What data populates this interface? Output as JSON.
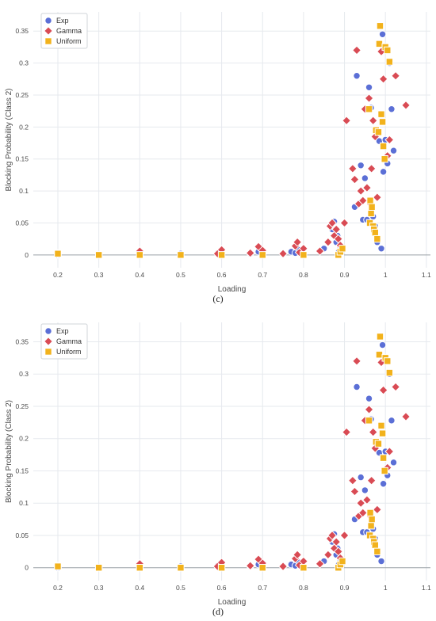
{
  "figure": {
    "caption_c": "(c)",
    "caption_d": "(d)"
  },
  "chart_data": [
    {
      "type": "scatter",
      "title": "",
      "xlabel": "Loading",
      "ylabel": "Blocking Probability (Class 2)",
      "xlim": [
        0.14,
        1.11
      ],
      "ylim": [
        -0.02,
        0.38
      ],
      "xticks": [
        0.2,
        0.3,
        0.4,
        0.5,
        0.6,
        0.7,
        0.8,
        0.9,
        1,
        1.1
      ],
      "yticks": [
        0,
        0.05,
        0.1,
        0.15,
        0.2,
        0.25,
        0.3,
        0.35
      ],
      "grid": true,
      "legend": "top-left",
      "series": [
        {
          "name": "Exp",
          "color": "#5b6fd6",
          "marker": "circle",
          "x": [
            0.2,
            0.3,
            0.4,
            0.5,
            0.59,
            0.6,
            0.67,
            0.69,
            0.75,
            0.77,
            0.78,
            0.79,
            0.8,
            0.85,
            0.87,
            0.875,
            0.88,
            0.883,
            0.886,
            0.89,
            0.925,
            0.93,
            0.94,
            0.945,
            0.95,
            0.955,
            0.96,
            0.965,
            0.97,
            0.975,
            0.98,
            0.985,
            0.99,
            0.993,
            0.995,
            1.0,
            1.005,
            1.01,
            1.015,
            1.02
          ],
          "y": [
            0.0,
            0.0,
            0.003,
            0.002,
            0.003,
            0.004,
            0.002,
            0.005,
            0.002,
            0.005,
            0.003,
            0.008,
            0.001,
            0.01,
            0.04,
            0.052,
            0.02,
            0.03,
            0.005,
            0.01,
            0.075,
            0.28,
            0.14,
            0.055,
            0.12,
            0.055,
            0.262,
            0.23,
            0.06,
            0.045,
            0.02,
            0.178,
            0.01,
            0.345,
            0.13,
            0.18,
            0.143,
            0.3,
            0.228,
            0.163
          ]
        },
        {
          "name": "Gamma",
          "color": "#d94b54",
          "marker": "diamond",
          "x": [
            0.2,
            0.4,
            0.59,
            0.6,
            0.67,
            0.69,
            0.7,
            0.75,
            0.78,
            0.785,
            0.79,
            0.8,
            0.84,
            0.86,
            0.865,
            0.87,
            0.875,
            0.88,
            0.885,
            0.89,
            0.9,
            0.905,
            0.92,
            0.925,
            0.93,
            0.935,
            0.94,
            0.945,
            0.95,
            0.955,
            0.96,
            0.963,
            0.966,
            0.97,
            0.975,
            0.98,
            0.99,
            0.995,
            1.005,
            1.01,
            1.025,
            1.05
          ],
          "y": [
            0.002,
            0.006,
            0.002,
            0.008,
            0.003,
            0.013,
            0.007,
            0.002,
            0.014,
            0.02,
            0.004,
            0.01,
            0.006,
            0.02,
            0.045,
            0.05,
            0.03,
            0.04,
            0.025,
            0.015,
            0.05,
            0.21,
            0.135,
            0.118,
            0.32,
            0.08,
            0.1,
            0.085,
            0.228,
            0.105,
            0.245,
            0.08,
            0.135,
            0.21,
            0.185,
            0.09,
            0.318,
            0.275,
            0.155,
            0.18,
            0.28,
            0.234
          ]
        },
        {
          "name": "Uniform",
          "color": "#f2b21c",
          "marker": "square",
          "x": [
            0.2,
            0.3,
            0.4,
            0.5,
            0.6,
            0.7,
            0.8,
            0.885,
            0.89,
            0.895,
            0.96,
            0.962,
            0.963,
            0.965,
            0.967,
            0.97,
            0.972,
            0.975,
            0.977,
            0.98,
            0.983,
            0.985,
            0.987,
            0.99,
            0.993,
            0.995,
            0.998,
            1.0,
            1.005,
            1.01
          ],
          "y": [
            0.002,
            0.0,
            0.0,
            0.0,
            0.0,
            0.0,
            0.0,
            0.0,
            0.005,
            0.01,
            0.228,
            0.05,
            0.085,
            0.065,
            0.075,
            0.045,
            0.04,
            0.035,
            0.195,
            0.025,
            0.192,
            0.33,
            0.358,
            0.22,
            0.208,
            0.17,
            0.15,
            0.325,
            0.32,
            0.302
          ]
        }
      ]
    },
    {
      "type": "scatter",
      "title": "",
      "xlabel": "Loading",
      "ylabel": "Blocking Probability (Class 2)",
      "xlim": [
        0.14,
        1.11
      ],
      "ylim": [
        -0.02,
        0.38
      ],
      "xticks": [
        0.2,
        0.3,
        0.4,
        0.5,
        0.6,
        0.7,
        0.8,
        0.9,
        1,
        1.1
      ],
      "yticks": [
        0,
        0.05,
        0.1,
        0.15,
        0.2,
        0.25,
        0.3,
        0.35
      ],
      "grid": true,
      "legend": "top-left",
      "series": [
        {
          "name": "Exp",
          "color": "#5b6fd6",
          "marker": "circle",
          "x": [
            0.2,
            0.3,
            0.4,
            0.5,
            0.59,
            0.6,
            0.67,
            0.69,
            0.75,
            0.77,
            0.78,
            0.79,
            0.8,
            0.85,
            0.87,
            0.875,
            0.88,
            0.883,
            0.886,
            0.89,
            0.925,
            0.93,
            0.94,
            0.945,
            0.95,
            0.955,
            0.96,
            0.965,
            0.97,
            0.975,
            0.98,
            0.985,
            0.99,
            0.993,
            0.995,
            1.0,
            1.005,
            1.01,
            1.015,
            1.02
          ],
          "y": [
            0.0,
            0.0,
            0.003,
            0.002,
            0.003,
            0.004,
            0.002,
            0.005,
            0.002,
            0.005,
            0.003,
            0.008,
            0.001,
            0.01,
            0.04,
            0.052,
            0.02,
            0.03,
            0.005,
            0.01,
            0.075,
            0.28,
            0.14,
            0.055,
            0.12,
            0.055,
            0.262,
            0.23,
            0.06,
            0.045,
            0.02,
            0.178,
            0.01,
            0.345,
            0.13,
            0.18,
            0.143,
            0.3,
            0.228,
            0.163
          ]
        },
        {
          "name": "Gamma",
          "color": "#d94b54",
          "marker": "diamond",
          "x": [
            0.2,
            0.4,
            0.59,
            0.6,
            0.67,
            0.69,
            0.7,
            0.75,
            0.78,
            0.785,
            0.79,
            0.8,
            0.84,
            0.86,
            0.865,
            0.87,
            0.875,
            0.88,
            0.885,
            0.89,
            0.9,
            0.905,
            0.92,
            0.925,
            0.93,
            0.935,
            0.94,
            0.945,
            0.95,
            0.955,
            0.96,
            0.963,
            0.966,
            0.97,
            0.975,
            0.98,
            0.99,
            0.995,
            1.005,
            1.01,
            1.025,
            1.05
          ],
          "y": [
            0.002,
            0.006,
            0.002,
            0.008,
            0.003,
            0.013,
            0.007,
            0.002,
            0.014,
            0.02,
            0.004,
            0.01,
            0.006,
            0.02,
            0.045,
            0.05,
            0.03,
            0.04,
            0.025,
            0.015,
            0.05,
            0.21,
            0.135,
            0.118,
            0.32,
            0.08,
            0.1,
            0.085,
            0.228,
            0.105,
            0.245,
            0.08,
            0.135,
            0.21,
            0.185,
            0.09,
            0.318,
            0.275,
            0.155,
            0.18,
            0.28,
            0.234
          ]
        },
        {
          "name": "Uniform",
          "color": "#f2b21c",
          "marker": "square",
          "x": [
            0.2,
            0.3,
            0.4,
            0.5,
            0.6,
            0.7,
            0.8,
            0.885,
            0.89,
            0.895,
            0.96,
            0.962,
            0.963,
            0.965,
            0.967,
            0.97,
            0.972,
            0.975,
            0.977,
            0.98,
            0.983,
            0.985,
            0.987,
            0.99,
            0.993,
            0.995,
            0.998,
            1.0,
            1.005,
            1.01
          ],
          "y": [
            0.002,
            0.0,
            0.0,
            0.0,
            0.0,
            0.0,
            0.0,
            0.0,
            0.005,
            0.01,
            0.228,
            0.05,
            0.085,
            0.065,
            0.075,
            0.045,
            0.04,
            0.035,
            0.195,
            0.025,
            0.192,
            0.33,
            0.358,
            0.22,
            0.208,
            0.17,
            0.15,
            0.325,
            0.32,
            0.302
          ]
        }
      ]
    }
  ]
}
